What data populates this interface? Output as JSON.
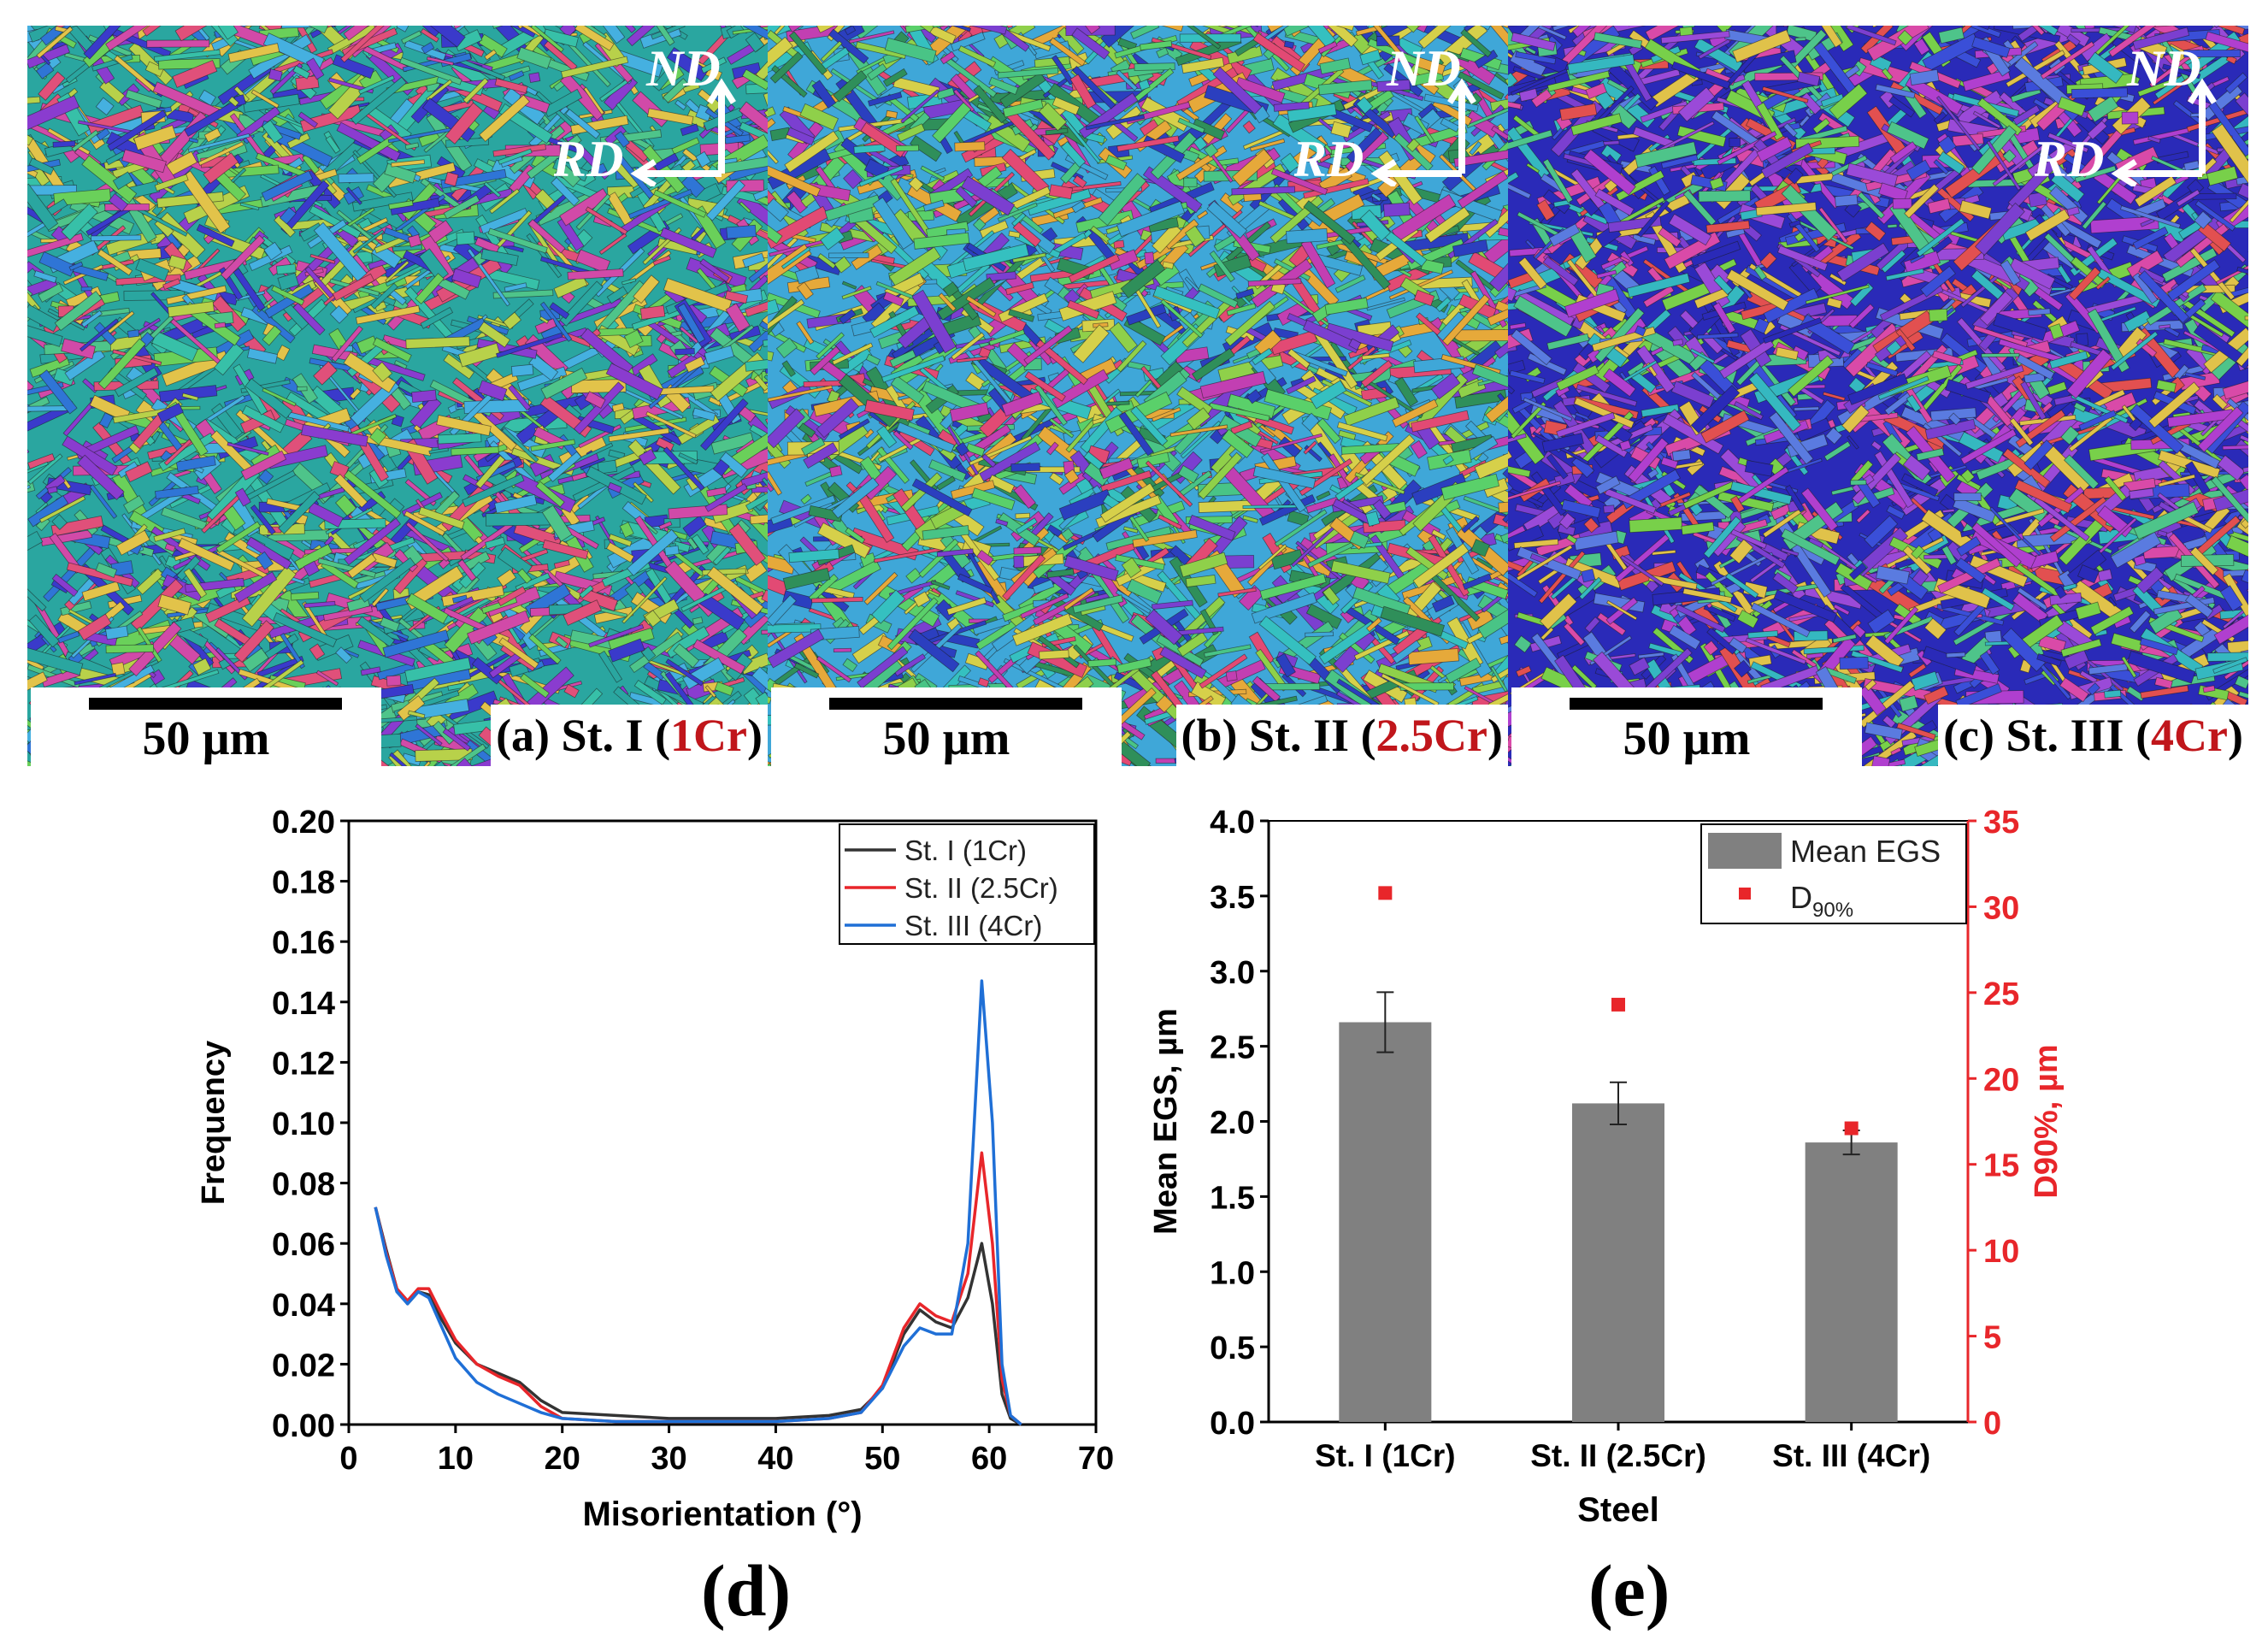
{
  "panels": [
    {
      "letter": "(a)",
      "steel": "St. I",
      "open": "(",
      "cr": "1Cr",
      "close": ")",
      "scale_label": "50 µm",
      "axis_nd": "ND",
      "axis_rd": "RD",
      "palette": [
        "#2aa6a0",
        "#37c0a8",
        "#4ec48a",
        "#6ad05a",
        "#b8d14a",
        "#e2c34a",
        "#d14aa8",
        "#8a3ccf",
        "#3a3acb",
        "#2f75d6",
        "#e0507a",
        "#45b0e0"
      ]
    },
    {
      "letter": "(b)",
      "steel": "St. II",
      "open": "(",
      "cr": "2.5Cr",
      "close": ")",
      "scale_label": "50 µm",
      "axis_nd": "ND",
      "axis_rd": "RD",
      "palette": [
        "#3fa7d8",
        "#49c486",
        "#2f8f5a",
        "#8fd04a",
        "#d6d04a",
        "#e6a93a",
        "#c23fb2",
        "#7b3fd0",
        "#2b3fbf",
        "#35c0c0",
        "#e24a74",
        "#5ad06a"
      ]
    },
    {
      "letter": "(c)",
      "steel": "St. III",
      "open": "(",
      "cr": "4Cr",
      "close": ")",
      "scale_label": "50 µm",
      "axis_nd": "ND",
      "axis_rd": "RD",
      "palette": [
        "#2a2ab8",
        "#3a4fd8",
        "#7b3fd0",
        "#b03fcf",
        "#d94aa8",
        "#4ec48a",
        "#78d04a",
        "#35b8c0",
        "#e0c24a",
        "#e25050",
        "#5a7be0",
        "#9a4ad8"
      ]
    }
  ],
  "chart_data": [
    {
      "type": "line",
      "caption": "(d)",
      "xlabel": "Misorientation (°)",
      "ylabel": "Frequency",
      "xlim": [
        0,
        70
      ],
      "ylim": [
        0,
        0.2
      ],
      "xticks": [
        0,
        10,
        20,
        30,
        40,
        50,
        60,
        70
      ],
      "yticks": [
        "0.00",
        "0.02",
        "0.04",
        "0.06",
        "0.08",
        "0.10",
        "0.12",
        "0.14",
        "0.16",
        "0.18",
        "0.20"
      ],
      "legend": [
        "St. I (1Cr)",
        "St. II (2.5Cr)",
        "St. III (4Cr)"
      ],
      "series": [
        {
          "name": "St. I (1Cr)",
          "color": "#333333",
          "points": [
            [
              2.5,
              0.072
            ],
            [
              3.5,
              0.058
            ],
            [
              4.5,
              0.045
            ],
            [
              5.5,
              0.04
            ],
            [
              6.5,
              0.044
            ],
            [
              7.5,
              0.043
            ],
            [
              8.5,
              0.036
            ],
            [
              10,
              0.027
            ],
            [
              12,
              0.02
            ],
            [
              14,
              0.017
            ],
            [
              16,
              0.014
            ],
            [
              18,
              0.008
            ],
            [
              20,
              0.004
            ],
            [
              25,
              0.003
            ],
            [
              30,
              0.002
            ],
            [
              35,
              0.002
            ],
            [
              40,
              0.002
            ],
            [
              45,
              0.003
            ],
            [
              48,
              0.005
            ],
            [
              50,
              0.012
            ],
            [
              52,
              0.03
            ],
            [
              53.5,
              0.038
            ],
            [
              55,
              0.034
            ],
            [
              56.5,
              0.032
            ],
            [
              58,
              0.042
            ],
            [
              59.3,
              0.06
            ],
            [
              60.3,
              0.04
            ],
            [
              61.2,
              0.01
            ],
            [
              62,
              0.002
            ],
            [
              63,
              0.0
            ]
          ]
        },
        {
          "name": "St. II (2.5Cr)",
          "color": "#e8262a",
          "points": [
            [
              2.5,
              0.072
            ],
            [
              3.5,
              0.057
            ],
            [
              4.5,
              0.045
            ],
            [
              5.5,
              0.041
            ],
            [
              6.5,
              0.045
            ],
            [
              7.5,
              0.045
            ],
            [
              8.5,
              0.038
            ],
            [
              10,
              0.028
            ],
            [
              12,
              0.02
            ],
            [
              14,
              0.016
            ],
            [
              16,
              0.013
            ],
            [
              18,
              0.006
            ],
            [
              20,
              0.002
            ],
            [
              25,
              0.001
            ],
            [
              30,
              0.001
            ],
            [
              35,
              0.001
            ],
            [
              40,
              0.001
            ],
            [
              45,
              0.002
            ],
            [
              48,
              0.004
            ],
            [
              50,
              0.013
            ],
            [
              52,
              0.032
            ],
            [
              53.5,
              0.04
            ],
            [
              55,
              0.036
            ],
            [
              56.5,
              0.034
            ],
            [
              58,
              0.05
            ],
            [
              59.3,
              0.09
            ],
            [
              60.3,
              0.06
            ],
            [
              61.2,
              0.015
            ],
            [
              62,
              0.003
            ],
            [
              63,
              0.0
            ]
          ]
        },
        {
          "name": "St. III (4Cr)",
          "color": "#1f6fd6",
          "points": [
            [
              2.5,
              0.072
            ],
            [
              3.5,
              0.056
            ],
            [
              4.5,
              0.044
            ],
            [
              5.5,
              0.04
            ],
            [
              6.5,
              0.044
            ],
            [
              7.5,
              0.042
            ],
            [
              8.5,
              0.034
            ],
            [
              10,
              0.022
            ],
            [
              12,
              0.014
            ],
            [
              14,
              0.01
            ],
            [
              16,
              0.007
            ],
            [
              18,
              0.004
            ],
            [
              20,
              0.002
            ],
            [
              25,
              0.001
            ],
            [
              30,
              0.001
            ],
            [
              35,
              0.001
            ],
            [
              40,
              0.001
            ],
            [
              45,
              0.002
            ],
            [
              48,
              0.004
            ],
            [
              50,
              0.012
            ],
            [
              52,
              0.026
            ],
            [
              53.5,
              0.032
            ],
            [
              55,
              0.03
            ],
            [
              56.5,
              0.03
            ],
            [
              58,
              0.06
            ],
            [
              59.3,
              0.147
            ],
            [
              60.3,
              0.1
            ],
            [
              61.2,
              0.02
            ],
            [
              62,
              0.003
            ],
            [
              63,
              0.0
            ]
          ]
        }
      ]
    },
    {
      "type": "bar",
      "caption": "(e)",
      "xlabel": "Steel",
      "ylabel": "Mean EGS, µm",
      "y2label": "D90%, µm",
      "categories": [
        "St. I (1Cr)",
        "St. II (2.5Cr)",
        "St. III (4Cr)"
      ],
      "ylim": [
        0,
        4.0
      ],
      "yticks": [
        "0.0",
        "0.5",
        "1.0",
        "1.5",
        "2.0",
        "2.5",
        "3.0",
        "3.5",
        "4.0"
      ],
      "y2lim": [
        0,
        35
      ],
      "y2ticks": [
        "0",
        "5",
        "10",
        "15",
        "20",
        "25",
        "30",
        "35"
      ],
      "legend_bar": "Mean EGS",
      "legend_point_main": "D",
      "legend_point_sub": "90%",
      "bar_color": "#808080",
      "point_color": "#e8262a",
      "series": [
        {
          "name": "Mean EGS",
          "values": [
            2.66,
            2.12,
            1.86
          ],
          "errors": [
            0.2,
            0.14,
            0.08
          ]
        },
        {
          "name": "D90%",
          "values": [
            30.8,
            24.3,
            17.1
          ]
        }
      ]
    }
  ]
}
